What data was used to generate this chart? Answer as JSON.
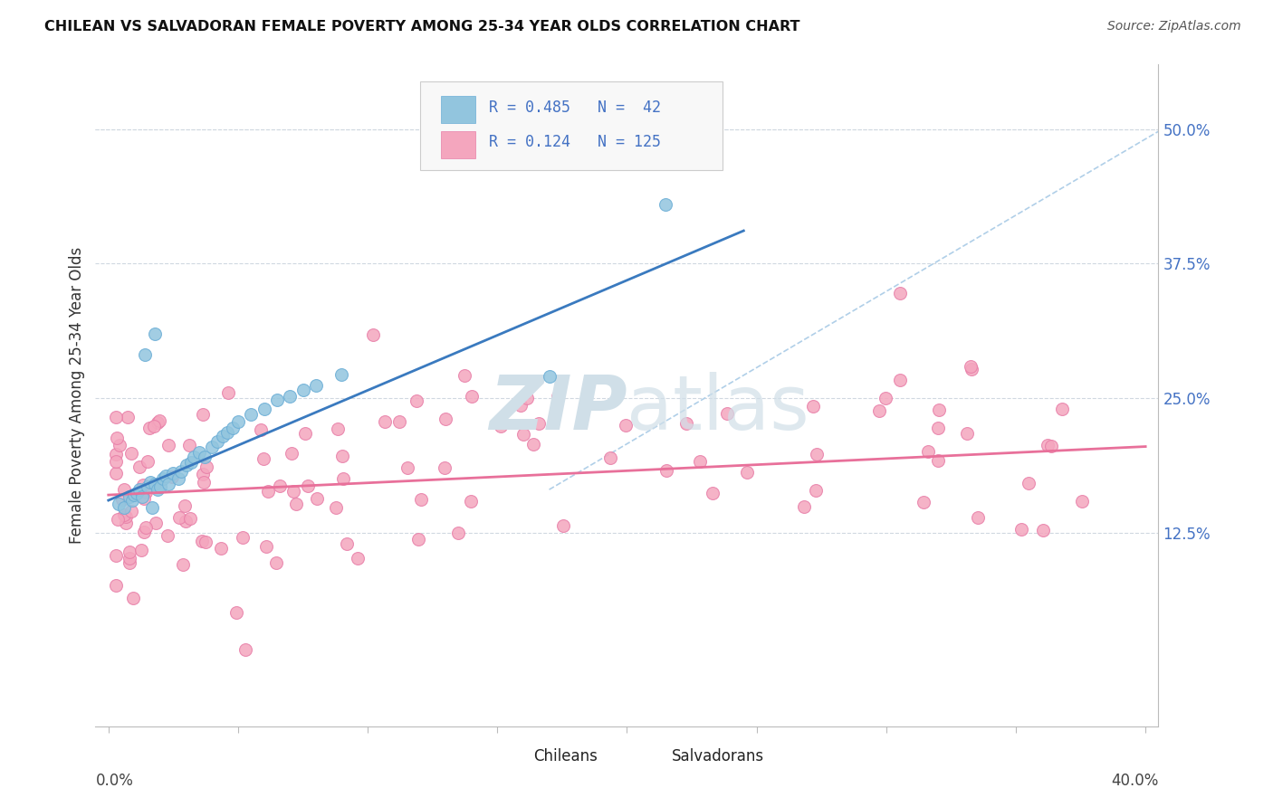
{
  "title": "CHILEAN VS SALVADORAN FEMALE POVERTY AMONG 25-34 YEAR OLDS CORRELATION CHART",
  "source": "Source: ZipAtlas.com",
  "ylabel": "Female Poverty Among 25-34 Year Olds",
  "ytick_values": [
    0.125,
    0.25,
    0.375,
    0.5
  ],
  "ytick_labels": [
    "12.5%",
    "25.0%",
    "37.5%",
    "50.0%"
  ],
  "xlim": [
    -0.005,
    0.405
  ],
  "ylim": [
    -0.055,
    0.56
  ],
  "chilean_color": "#92c5de",
  "chilean_edge_color": "#6baed6",
  "salvadoran_color": "#f4a6be",
  "salvadoran_edge_color": "#e87fa8",
  "chilean_line_color": "#3a7abf",
  "salvadoran_line_color": "#e8709a",
  "diagonal_color": "#b0cfe8",
  "watermark_color": "#d0dfe8",
  "background_color": "#ffffff",
  "grid_color": "#d0d8e0",
  "ytick_color": "#4472C4",
  "xlabel_color": "#444444",
  "legend_text_color": "#4472C4",
  "legend_bg": "#f8f8f8",
  "legend_edge": "#cccccc",
  "title_color": "#111111",
  "source_color": "#555555",
  "ylabel_color": "#333333"
}
